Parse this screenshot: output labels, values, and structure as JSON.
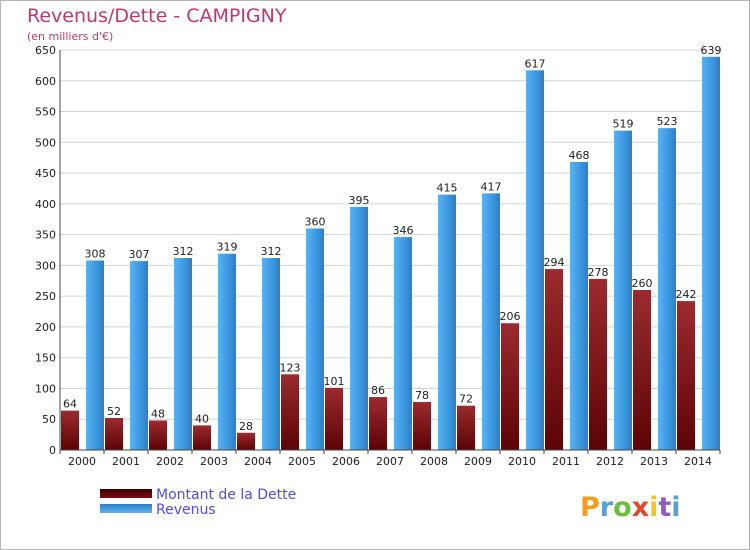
{
  "chart_data": {
    "type": "bar",
    "title": "Revenus/Dette - CAMPIGNY",
    "subtitle": "(en milliers d'€)",
    "categories": [
      "2000",
      "2001",
      "2002",
      "2003",
      "2004",
      "2005",
      "2006",
      "2007",
      "2008",
      "2009",
      "2010",
      "2011",
      "2012",
      "2013",
      "2014"
    ],
    "series": [
      {
        "name": "Montant de la Dette",
        "color": "#7b0f12",
        "values": [
          64,
          52,
          48,
          40,
          28,
          123,
          101,
          86,
          78,
          72,
          206,
          294,
          278,
          260,
          242
        ]
      },
      {
        "name": "Revenus",
        "color": "#3f9be3",
        "values": [
          308,
          307,
          312,
          319,
          312,
          360,
          395,
          346,
          415,
          417,
          617,
          468,
          519,
          523,
          639
        ]
      }
    ],
    "ylim": [
      0,
      650
    ],
    "yticks": [
      0,
      50,
      100,
      150,
      200,
      250,
      300,
      350,
      400,
      450,
      500,
      550,
      600,
      650
    ],
    "grid": true,
    "legend": "bottom-left",
    "xlabel": "",
    "ylabel": ""
  },
  "branding": {
    "logo_letters": [
      "P",
      "r",
      "o",
      "x",
      "i",
      "t",
      "i"
    ],
    "logo_colors": [
      "#f39c1e",
      "#5aa0d8",
      "#6cbf3a",
      "#e8452c",
      "#f5c41d",
      "#8e5cc4",
      "#5aa0d8"
    ]
  }
}
